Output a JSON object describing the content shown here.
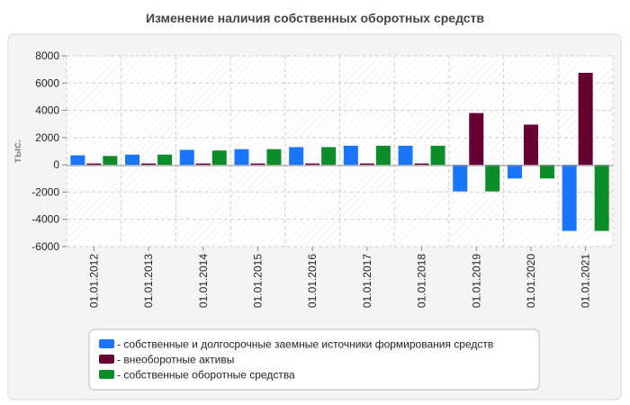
{
  "chart_data": {
    "type": "bar",
    "title": "Изменение наличия собственных оборотных средств",
    "xlabel": "",
    "ylabel": "тыс.",
    "ylim": [
      -6000,
      8000
    ],
    "yticks": [
      -6000,
      -4000,
      -2000,
      0,
      2000,
      4000,
      6000,
      8000
    ],
    "grid": true,
    "legend_position": "bottom-center",
    "categories": [
      "01.01.2012",
      "01.01.2013",
      "01.01.2014",
      "01.01.2015",
      "01.01.2016",
      "01.01.2017",
      "01.01.2018",
      "01.01.2019",
      "01.01.2020",
      "01.01.2021"
    ],
    "series": [
      {
        "name": "- собственные и долгосрочные заемные источники формирования средств",
        "color": "#1a75ff",
        "values": [
          700,
          750,
          1100,
          1150,
          1300,
          1400,
          1400,
          -1950,
          -1000,
          -4850
        ]
      },
      {
        "name": "- внеоборотные активы",
        "color": "#660033",
        "values": [
          100,
          100,
          100,
          100,
          100,
          100,
          100,
          3800,
          2950,
          6750
        ]
      },
      {
        "name": "- собственные оборотные средства",
        "color": "#0d8c2a",
        "values": [
          650,
          750,
          1050,
          1150,
          1300,
          1400,
          1400,
          -1950,
          -1000,
          -4850
        ]
      }
    ]
  }
}
